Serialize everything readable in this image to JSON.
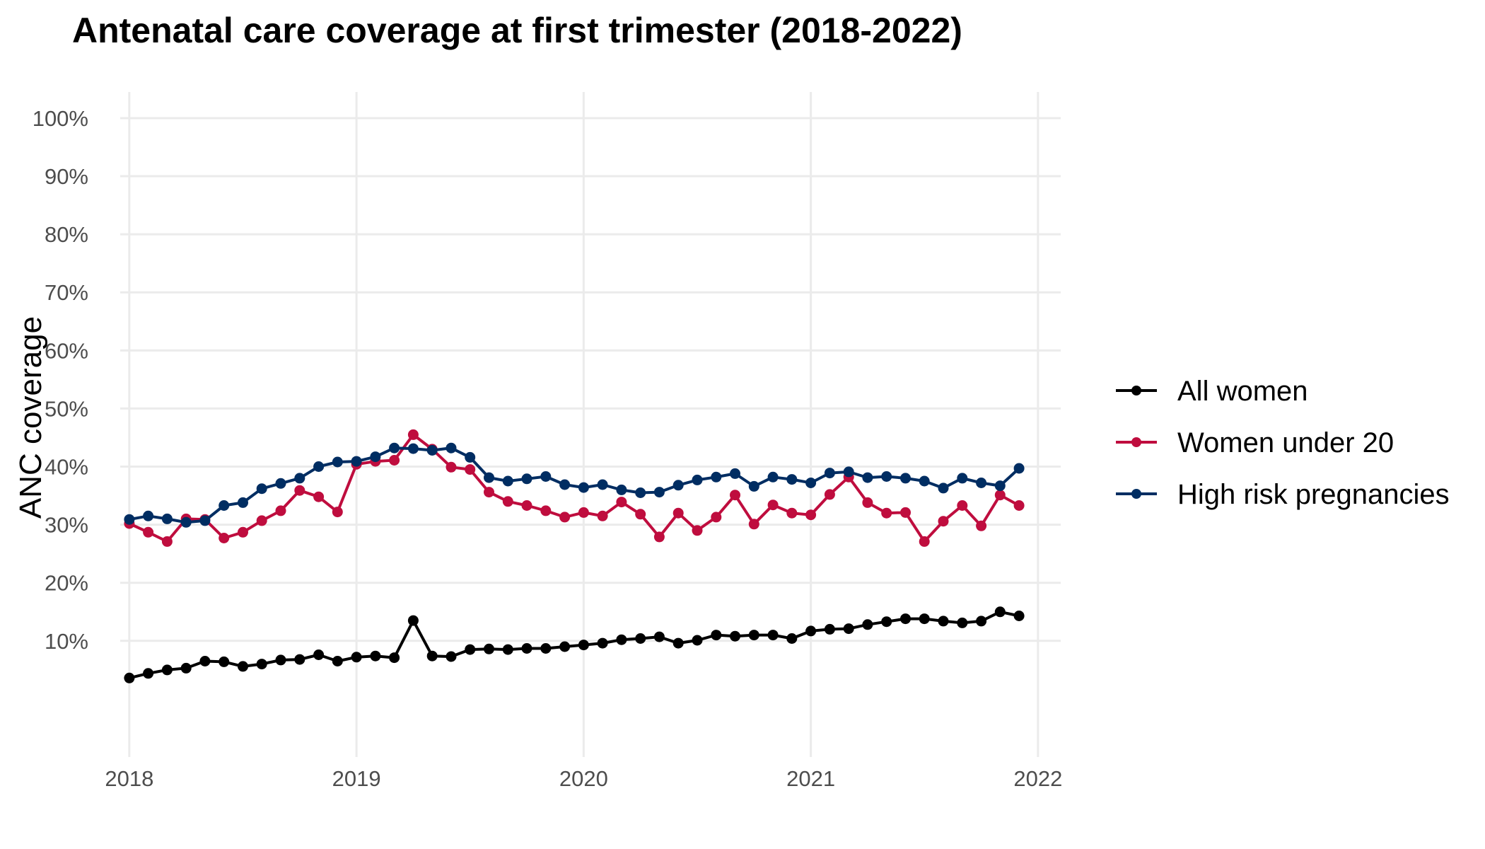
{
  "chart_data": {
    "type": "line",
    "title": "Antenatal care coverage at first trimester (2018-2022)",
    "xlabel": "",
    "ylabel": "ANC coverage",
    "xlim": [
      2017.96,
      2022.1
    ],
    "ylim": [
      -0.1,
      1.045
    ],
    "x_ticks": [
      "2018",
      "2019",
      "2020",
      "2021",
      "2022"
    ],
    "x_tick_values": [
      2018,
      2019,
      2020,
      2021,
      2022
    ],
    "y_ticks": [
      "10%",
      "20%",
      "30%",
      "40%",
      "50%",
      "60%",
      "70%",
      "80%",
      "90%",
      "100%"
    ],
    "y_tick_values": [
      0.1,
      0.2,
      0.3,
      0.4,
      0.5,
      0.6,
      0.7,
      0.8,
      0.9,
      1.0
    ],
    "grid": true,
    "legend": "right",
    "x_start": "2018-01",
    "x_step_months": 1,
    "dates": [
      "2018-01",
      "2018-02",
      "2018-03",
      "2018-04",
      "2018-05",
      "2018-06",
      "2018-07",
      "2018-08",
      "2018-09",
      "2018-10",
      "2018-11",
      "2018-12",
      "2019-01",
      "2019-02",
      "2019-03",
      "2019-04",
      "2019-05",
      "2019-06",
      "2019-07",
      "2019-08",
      "2019-09",
      "2019-10",
      "2019-11",
      "2019-12",
      "2020-01",
      "2020-02",
      "2020-03",
      "2020-04",
      "2020-05",
      "2020-06",
      "2020-07",
      "2020-08",
      "2020-09",
      "2020-10",
      "2020-11",
      "2020-12",
      "2021-01",
      "2021-02",
      "2021-03",
      "2021-04",
      "2021-05",
      "2021-06",
      "2021-07",
      "2021-08",
      "2021-09",
      "2021-10",
      "2021-11",
      "2021-12"
    ],
    "series": [
      {
        "name": "All women",
        "color": "#000000",
        "values": [
          0.036,
          0.044,
          0.05,
          0.053,
          0.065,
          0.064,
          0.056,
          0.06,
          0.067,
          0.068,
          0.076,
          0.065,
          0.072,
          0.074,
          0.071,
          0.135,
          0.074,
          0.073,
          0.085,
          0.086,
          0.085,
          0.087,
          0.087,
          0.09,
          0.093,
          0.096,
          0.102,
          0.104,
          0.107,
          0.096,
          0.101,
          0.11,
          0.108,
          0.11,
          0.11,
          0.104,
          0.117,
          0.12,
          0.121,
          0.128,
          0.133,
          0.138,
          0.138,
          0.134,
          0.131,
          0.134,
          0.15,
          0.143
        ]
      },
      {
        "name": "Women under 20",
        "color": "#bf0d3e",
        "values": [
          0.302,
          0.287,
          0.271,
          0.31,
          0.309,
          0.277,
          0.287,
          0.307,
          0.324,
          0.359,
          0.348,
          0.322,
          0.404,
          0.409,
          0.411,
          0.455,
          0.43,
          0.399,
          0.395,
          0.356,
          0.34,
          0.333,
          0.324,
          0.313,
          0.321,
          0.315,
          0.339,
          0.318,
          0.279,
          0.32,
          0.29,
          0.313,
          0.351,
          0.301,
          0.334,
          0.32,
          0.317,
          0.352,
          0.382,
          0.338,
          0.32,
          0.321,
          0.271,
          0.306,
          0.333,
          0.298,
          0.351,
          0.333
        ]
      },
      {
        "name": "High risk pregnancies",
        "color": "#002d62",
        "values": [
          0.309,
          0.315,
          0.31,
          0.304,
          0.307,
          0.333,
          0.338,
          0.362,
          0.371,
          0.38,
          0.4,
          0.408,
          0.409,
          0.417,
          0.432,
          0.431,
          0.428,
          0.432,
          0.416,
          0.381,
          0.375,
          0.379,
          0.383,
          0.369,
          0.364,
          0.369,
          0.36,
          0.355,
          0.356,
          0.368,
          0.377,
          0.382,
          0.388,
          0.366,
          0.382,
          0.378,
          0.372,
          0.389,
          0.391,
          0.381,
          0.383,
          0.38,
          0.375,
          0.363,
          0.38,
          0.372,
          0.367,
          0.397
        ]
      }
    ]
  }
}
